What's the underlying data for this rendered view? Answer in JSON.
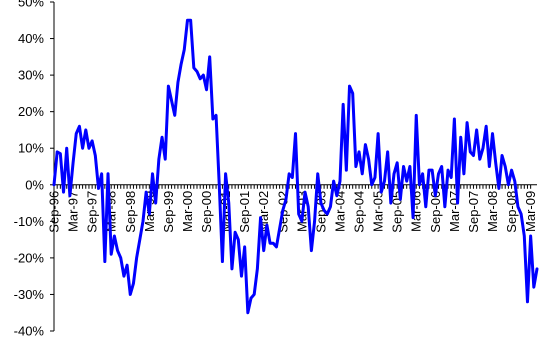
{
  "chart_data": {
    "type": "line",
    "title": "",
    "xlabel": "",
    "ylabel": "",
    "ylim": [
      -0.4,
      0.5
    ],
    "yticks": [
      -0.4,
      -0.3,
      -0.2,
      -0.1,
      0,
      0.1,
      0.2,
      0.3,
      0.4,
      0.5
    ],
    "ytick_labels": [
      "-40%",
      "-30%",
      "-20%",
      "-10%",
      "0%",
      "10%",
      "20%",
      "30%",
      "40%",
      "50%"
    ],
    "x_start": "Sep-96",
    "x_end": "Mar-09",
    "x_tick_labels": [
      "Sep-96",
      "Mar-97",
      "Sep-97",
      "Mar-98",
      "Sep-98",
      "Mar-99",
      "Sep-99",
      "Mar-00",
      "Sep-00",
      "Mar-01",
      "Sep-01",
      "Mar-02",
      "Sep-02",
      "Mar-03",
      "Sep-03",
      "Mar-04",
      "Sep-04",
      "Mar-05",
      "Sep-05",
      "Mar-06",
      "Sep-06",
      "Mar-07",
      "Sep-07",
      "Mar-08",
      "Sep-08",
      "Mar-09"
    ],
    "grid": false,
    "legend": "none",
    "series": [
      {
        "color": "#0000ff",
        "values": [
          0.0,
          0.09,
          0.085,
          -0.02,
          0.1,
          -0.03,
          0.06,
          0.14,
          0.16,
          0.1,
          0.15,
          0.1,
          0.12,
          0.08,
          -0.01,
          0.03,
          -0.21,
          0.03,
          -0.19,
          -0.14,
          -0.18,
          -0.2,
          -0.25,
          -0.22,
          -0.3,
          -0.27,
          -0.2,
          -0.15,
          -0.1,
          -0.02,
          -0.08,
          0.03,
          -0.05,
          0.07,
          0.13,
          0.07,
          0.27,
          0.23,
          0.19,
          0.28,
          0.33,
          0.37,
          0.45,
          0.45,
          0.32,
          0.31,
          0.29,
          0.3,
          0.26,
          0.35,
          0.18,
          0.19,
          0.0,
          -0.21,
          0.03,
          -0.05,
          -0.23,
          -0.13,
          -0.15,
          -0.25,
          -0.17,
          -0.35,
          -0.31,
          -0.3,
          -0.23,
          -0.09,
          -0.18,
          -0.11,
          -0.16,
          -0.16,
          -0.17,
          -0.12,
          -0.07,
          -0.04,
          0.03,
          0.02,
          0.14,
          -0.08,
          -0.1,
          -0.02,
          -0.06,
          -0.18,
          -0.1,
          0.03,
          -0.05,
          -0.07,
          -0.08,
          -0.06,
          0.01,
          -0.03,
          0.01,
          0.22,
          0.04,
          0.27,
          0.25,
          0.05,
          0.09,
          0.03,
          0.11,
          0.07,
          0.0,
          0.02,
          0.14,
          -0.02,
          0.01,
          0.09,
          -0.05,
          0.03,
          0.06,
          -0.04,
          0.05,
          0.01,
          0.05,
          -0.09,
          0.19,
          0.0,
          0.03,
          -0.06,
          0.04,
          0.04,
          -0.03,
          0.03,
          0.05,
          -0.06,
          0.04,
          0.02,
          0.18,
          -0.05,
          0.13,
          0.03,
          0.17,
          0.09,
          0.08,
          0.15,
          0.07,
          0.1,
          0.16,
          0.05,
          0.14,
          0.06,
          -0.01,
          0.08,
          0.05,
          0.0,
          0.04,
          0.01,
          -0.06,
          -0.08,
          -0.14,
          -0.32,
          -0.14,
          -0.28,
          -0.23
        ]
      }
    ]
  }
}
